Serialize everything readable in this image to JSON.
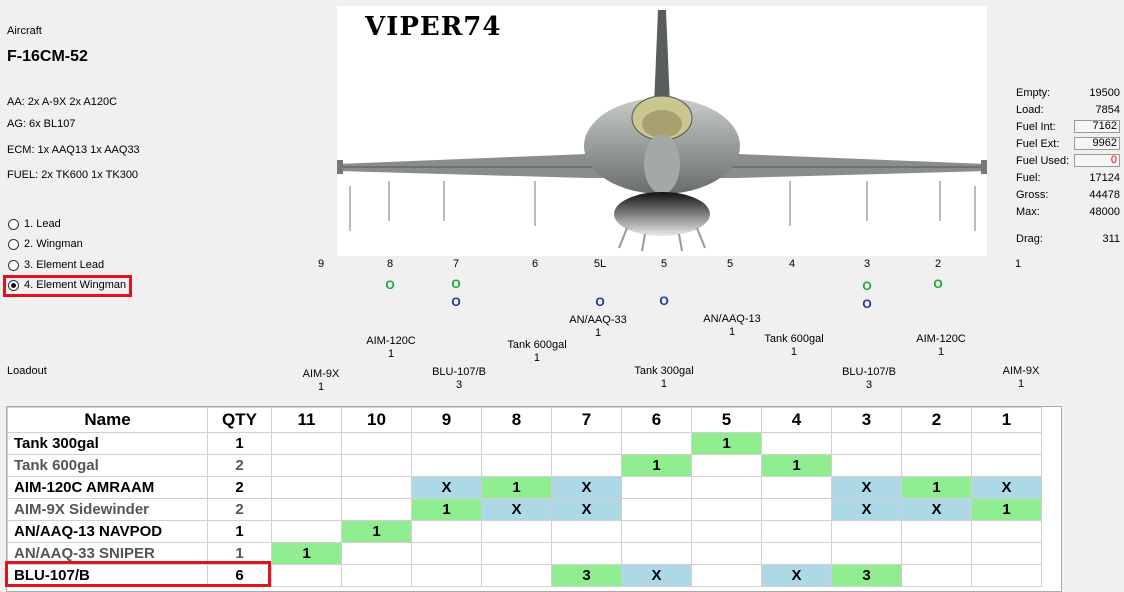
{
  "aircraft": {
    "label": "Aircraft",
    "name": "F-16CM-52",
    "callsign": "VIPER74",
    "summary": [
      "AA: 2x A-9X 2x A120C",
      "AG: 6x BL107",
      "ECM: 1x AAQ13 1x AAQ33",
      "FUEL: 2x TK600 1x TK300"
    ]
  },
  "positions": [
    {
      "label": "1. Lead",
      "checked": false
    },
    {
      "label": "2. Wingman",
      "checked": false
    },
    {
      "label": "3. Element Lead",
      "checked": false
    },
    {
      "label": "4. Element Wingman",
      "checked": true
    }
  ],
  "weights": [
    {
      "label": "Empty:",
      "value": "19500",
      "boxed": false
    },
    {
      "label": "Load:",
      "value": "7854",
      "boxed": false
    },
    {
      "label": "Fuel Int:",
      "value": "7162",
      "boxed": true
    },
    {
      "label": "Fuel Ext:",
      "value": "9962",
      "boxed": true
    },
    {
      "label": "Fuel Used:",
      "value": "0",
      "boxed": true,
      "color": "#e00000"
    },
    {
      "label": "Fuel:",
      "value": "17124",
      "boxed": false
    },
    {
      "label": "Gross:",
      "value": "44478",
      "boxed": false
    },
    {
      "label": "Max:",
      "value": "48000",
      "boxed": false
    }
  ],
  "drag": {
    "label": "Drag:",
    "value": "311"
  },
  "stations": [
    "9",
    "8",
    "7",
    "6",
    "5L",
    "5",
    "5",
    "4",
    "3",
    "2",
    "1"
  ],
  "station_marks": [
    {
      "text": "O",
      "color": "green",
      "station": "8"
    },
    {
      "text": "O",
      "color": "green",
      "station": "7"
    },
    {
      "text": "O",
      "color": "blue",
      "station": "7"
    },
    {
      "text": "O",
      "color": "blue",
      "station": "5L"
    },
    {
      "text": "O",
      "color": "blue",
      "station": "5"
    },
    {
      "text": "O",
      "color": "green",
      "station": "3"
    },
    {
      "text": "O",
      "color": "blue",
      "station": "3"
    },
    {
      "text": "O",
      "color": "green",
      "station": "2"
    }
  ],
  "stores": [
    {
      "name": "AN/AAQ-33",
      "qty": "1"
    },
    {
      "name": "AN/AAQ-13",
      "qty": "1"
    },
    {
      "name": "AIM-120C",
      "qty": "1"
    },
    {
      "name": "Tank 600gal",
      "qty": "1"
    },
    {
      "name": "Tank 600gal",
      "qty": "1"
    },
    {
      "name": "AIM-120C",
      "qty": "1"
    },
    {
      "name": "AIM-9X",
      "qty": "1"
    },
    {
      "name": "BLU-107/B",
      "qty": "3"
    },
    {
      "name": "Tank 300gal",
      "qty": "1"
    },
    {
      "name": "BLU-107/B",
      "qty": "3"
    },
    {
      "name": "AIM-9X",
      "qty": "1"
    }
  ],
  "loadout_label": "Loadout",
  "table": {
    "headers": [
      "Name",
      "QTY",
      "11",
      "10",
      "9",
      "8",
      "7",
      "6",
      "5",
      "4",
      "3",
      "2",
      "1"
    ],
    "rows": [
      {
        "name": "Tank 300gal",
        "qty": "1",
        "dim": false,
        "cells": [
          "",
          "",
          "",
          "",
          "",
          "",
          "1g",
          "",
          "",
          "",
          ""
        ]
      },
      {
        "name": "Tank 600gal",
        "qty": "2",
        "dim": true,
        "cells": [
          "",
          "",
          "",
          "",
          "",
          "1g",
          "",
          "1g",
          "",
          "",
          ""
        ]
      },
      {
        "name": "AIM-120C AMRAAM",
        "qty": "2",
        "dim": false,
        "cells": [
          "",
          "",
          "Xb",
          "1g",
          "Xb",
          "",
          "",
          "",
          "Xb",
          "1g",
          "Xb"
        ]
      },
      {
        "name": "AIM-9X Sidewinder",
        "qty": "2",
        "dim": true,
        "cells": [
          "",
          "",
          "1g",
          "Xb",
          "Xb",
          "",
          "",
          "",
          "Xb",
          "Xb",
          "1g"
        ]
      },
      {
        "name": "AN/AAQ-13 NAVPOD",
        "qty": "1",
        "dim": false,
        "cells": [
          "",
          "1g",
          "",
          "",
          "",
          "",
          "",
          "",
          "",
          "",
          ""
        ]
      },
      {
        "name": "AN/AAQ-33 SNIPER",
        "qty": "1",
        "dim": true,
        "cells": [
          "1g",
          "",
          "",
          "",
          "",
          "",
          "",
          "",
          "",
          "",
          ""
        ]
      },
      {
        "name": "BLU-107/B",
        "qty": "6",
        "dim": false,
        "cells": [
          "",
          "",
          "",
          "",
          "3g",
          "Xb",
          "",
          "Xb",
          "3g",
          "",
          ""
        ]
      }
    ]
  }
}
